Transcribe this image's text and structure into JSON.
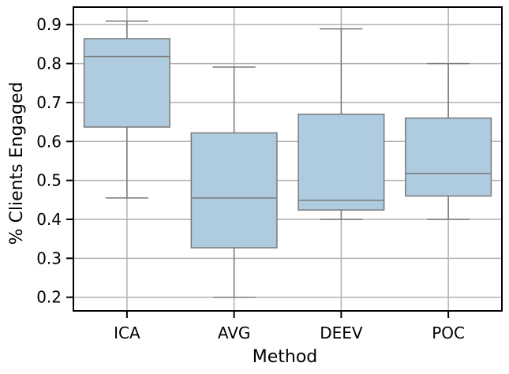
{
  "chart_data": {
    "type": "box",
    "xlabel": "Method",
    "ylabel": "% Clients Engaged",
    "ylim": [
      0.165,
      0.945
    ],
    "yticks": [
      0.2,
      0.3,
      0.4,
      0.5,
      0.6,
      0.7,
      0.8,
      0.9
    ],
    "ytick_labels": [
      "0.2",
      "0.3",
      "0.4",
      "0.5",
      "0.6",
      "0.7",
      "0.8",
      "0.9"
    ],
    "grid": true,
    "categories": [
      "ICA",
      "AVG",
      "DEEV",
      "POC"
    ],
    "boxes": [
      {
        "category": "ICA",
        "whisker_low": 0.455,
        "q1": 0.637,
        "median": 0.818,
        "q3": 0.864,
        "whisker_high": 0.909
      },
      {
        "category": "AVG",
        "whisker_low": 0.2,
        "q1": 0.327,
        "median": 0.455,
        "q3": 0.622,
        "whisker_high": 0.791
      },
      {
        "category": "DEEV",
        "whisker_low": 0.4,
        "q1": 0.424,
        "median": 0.449,
        "q3": 0.67,
        "whisker_high": 0.889
      },
      {
        "category": "POC",
        "whisker_low": 0.4,
        "q1": 0.46,
        "median": 0.518,
        "q3": 0.66,
        "whisker_high": 0.8
      }
    ],
    "colors": {
      "box_fill": "#aecbdf",
      "box_line": "#7a7a7a",
      "grid": "#b0b0b0",
      "axis": "#000000"
    }
  }
}
